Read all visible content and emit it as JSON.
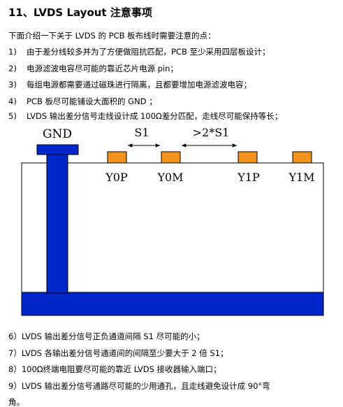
{
  "title": "11、LVDS  Layout 注意事项",
  "intro": "下面介绍一下关于 LVDS 的 PCB 板布线时需要注意的点：",
  "items_top": [
    {
      "num": "1)",
      "text": "由于差分线较多并为了方便做阻抗匹配，PCB 至少采用四层板设计；"
    },
    {
      "num": "2)",
      "text": "电源滤波电容尽可能的靠近芯片电源 pin；"
    },
    {
      "num": "3)",
      "text": "每组电源都需要通过磁珠进行隔离，且都要增加电源滤波电容；"
    },
    {
      "num": "4)",
      "text": "PCB 板尽可能铺设大面积的 GND ；"
    },
    {
      "num": "5)",
      "text": "LVDS 输出差分信号走线设计成 100Ω差分匹配，走线尽可能保持等长；"
    }
  ],
  "diagram": {
    "gnd_label": "GND",
    "s1_label": "S1",
    "gap_label": ">2*S1",
    "pads": [
      "Y0P",
      "Y0M",
      "Y1P",
      "Y1M"
    ],
    "colors": {
      "plane": "#0026c9",
      "pad": "#f4921e",
      "outline": "#000000"
    }
  },
  "items_bottom": [
    "6）LVDS 输出差分信号正负通道间隔 S1 尽可能的小；",
    "7）LVDS 各输出差分信号通道间的间隔至少要大于 2 倍 S1；",
    "8）100Ω终端电阻要尽可能的靠近 LVDS 接收器输入端口；",
    "9）LVDS 输出差分信号通路尽可能的少用通孔，且走线避免设计成 90°弯",
    "角。"
  ]
}
